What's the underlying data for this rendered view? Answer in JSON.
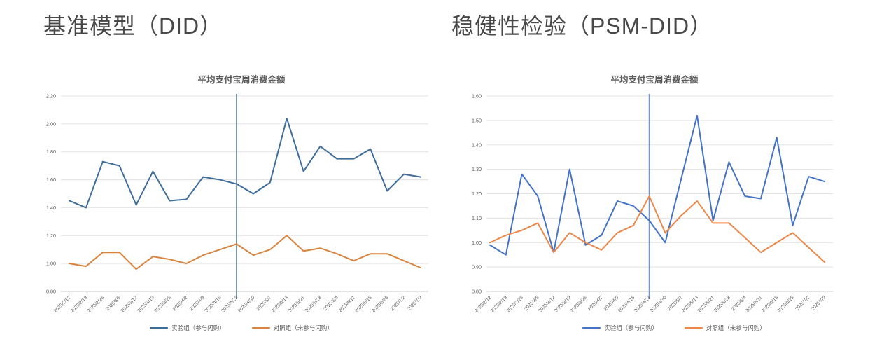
{
  "page": {
    "background": "#ffffff"
  },
  "left_panel": {
    "heading": "基准模型（DID）"
  },
  "right_panel": {
    "heading": "稳健性检验（PSM-DID）"
  },
  "chart_data": [
    {
      "type": "line",
      "title": "平均支付宝周消费金额",
      "panel": "基准模型（DID）",
      "x": [
        "2025/2/12",
        "2025/2/19",
        "2025/2/26",
        "2025/3/5",
        "2025/3/12",
        "2025/3/19",
        "2025/3/26",
        "2025/4/2",
        "2025/4/9",
        "2025/4/16",
        "2025/4/23",
        "2025/4/30",
        "2025/5/7",
        "2025/5/14",
        "2025/5/21",
        "2025/5/28",
        "2025/6/4",
        "2025/6/11",
        "2025/6/18",
        "2025/6/25",
        "2025/7/2",
        "2025/7/9"
      ],
      "series": [
        {
          "name": "实验组（参与闪购）",
          "color": "#3e6d9c",
          "values": [
            1.45,
            1.4,
            1.73,
            1.7,
            1.42,
            1.66,
            1.45,
            1.46,
            1.62,
            1.6,
            1.57,
            1.5,
            1.58,
            2.04,
            1.66,
            1.84,
            1.75,
            1.75,
            1.82,
            1.52,
            1.64,
            1.62
          ]
        },
        {
          "name": "对照组（未参与闪购）",
          "color": "#d8843e",
          "values": [
            1.0,
            0.98,
            1.08,
            1.08,
            0.96,
            1.05,
            1.03,
            1.0,
            1.06,
            1.1,
            1.14,
            1.06,
            1.1,
            1.2,
            1.09,
            1.11,
            1.07,
            1.02,
            1.07,
            1.07,
            1.02,
            0.97
          ]
        }
      ],
      "ylim": [
        0.8,
        2.2
      ],
      "yticks": [
        "0.80",
        "1.00",
        "1.20",
        "1.40",
        "1.60",
        "1.80",
        "2.00",
        "2.20"
      ],
      "grid": true,
      "legend_position": "bottom",
      "treatment_line": {
        "x_index": 10,
        "x_label": "2025/4/23",
        "color": "#5e7f97"
      }
    },
    {
      "type": "line",
      "title": "平均支付宝周消费金额",
      "panel": "稳健性检验（PSM-DID）",
      "x": [
        "2025/2/12",
        "2025/2/19",
        "2025/2/26",
        "2025/3/5",
        "2025/3/12",
        "2025/3/19",
        "2025/3/26",
        "2025/4/2",
        "2025/4/9",
        "2025/4/16",
        "2025/4/23",
        "2025/4/30",
        "2025/5/7",
        "2025/5/14",
        "2025/5/21",
        "2025/5/28",
        "2025/6/4",
        "2025/6/11",
        "2025/6/18",
        "2025/6/25",
        "2025/7/2",
        "2025/7/9"
      ],
      "series": [
        {
          "name": "实验组（参与闪购）",
          "color": "#4472c4",
          "values": [
            0.99,
            0.95,
            1.28,
            1.19,
            0.96,
            1.3,
            0.99,
            1.03,
            1.17,
            1.15,
            1.09,
            1.0,
            1.26,
            1.52,
            1.09,
            1.33,
            1.19,
            1.18,
            1.43,
            1.07,
            1.27,
            1.25
          ]
        },
        {
          "name": "对照组（未参与闪购）",
          "color": "#ed8749",
          "values": [
            1.0,
            1.03,
            1.05,
            1.08,
            0.96,
            1.04,
            1.0,
            0.97,
            1.04,
            1.07,
            1.19,
            1.04,
            1.11,
            1.17,
            1.08,
            1.08,
            1.02,
            0.96,
            1.0,
            1.04,
            0.98,
            0.92
          ]
        }
      ],
      "ylim": [
        0.8,
        1.6
      ],
      "yticks": [
        "0.80",
        "0.90",
        "1.00",
        "1.10",
        "1.20",
        "1.30",
        "1.40",
        "1.50",
        "1.60"
      ],
      "grid": true,
      "legend_position": "bottom",
      "treatment_line": {
        "x_index": 10,
        "x_label": "2025/4/23",
        "color": "#6f96d1"
      }
    }
  ]
}
